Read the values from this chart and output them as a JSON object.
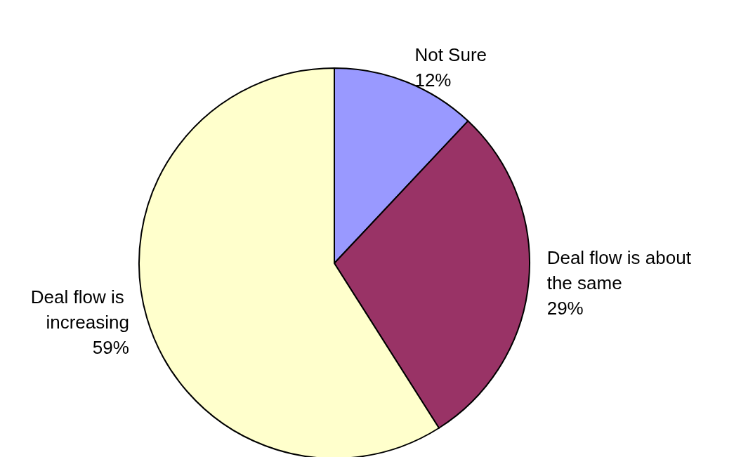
{
  "chart_data": {
    "type": "pie",
    "categories": [
      "Not Sure",
      "Deal flow is about the same",
      "Deal flow is increasing"
    ],
    "values": [
      12,
      29,
      59
    ],
    "colors": [
      "#9999ff",
      "#993366",
      "#ffffcc"
    ],
    "value_labels": [
      "12%",
      "29%",
      "59%"
    ],
    "legend": false
  }
}
